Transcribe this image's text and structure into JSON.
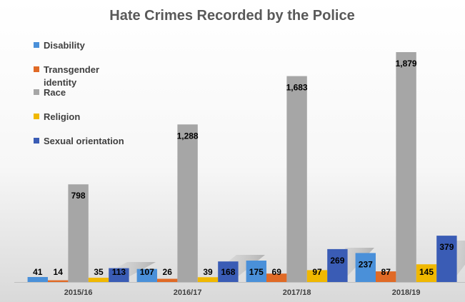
{
  "chart_data": {
    "type": "bar",
    "title": "Hate Crimes Recorded by the Police",
    "xlabel": "",
    "ylabel": "",
    "categories": [
      "2015/16",
      "2016/17",
      "2017/18",
      "2018/19"
    ],
    "series": [
      {
        "name": "Disability",
        "color": "#4a90d9",
        "values": [
          41,
          107,
          175,
          237
        ],
        "labels": [
          "41",
          "107",
          "175",
          "237"
        ]
      },
      {
        "name": "Transgender identity",
        "color": "#e06a26",
        "values": [
          14,
          26,
          69,
          87
        ],
        "labels": [
          "14",
          "26",
          "69",
          "87"
        ]
      },
      {
        "name": "Race",
        "color": "#a6a6a6",
        "values": [
          798,
          1288,
          1683,
          1879
        ],
        "labels": [
          "798",
          "1,288",
          "1,683",
          "1,879"
        ]
      },
      {
        "name": "Religion",
        "color": "#f0b800",
        "values": [
          35,
          39,
          97,
          145
        ],
        "labels": [
          "35",
          "39",
          "97",
          "145"
        ]
      },
      {
        "name": "Sexual orientation",
        "color": "#3a5cb5",
        "values": [
          113,
          168,
          269,
          379
        ],
        "labels": [
          "113",
          "168",
          "269",
          "379"
        ]
      }
    ],
    "ylim": [
      0,
      2000
    ],
    "grid": false,
    "legend_position": "left"
  }
}
